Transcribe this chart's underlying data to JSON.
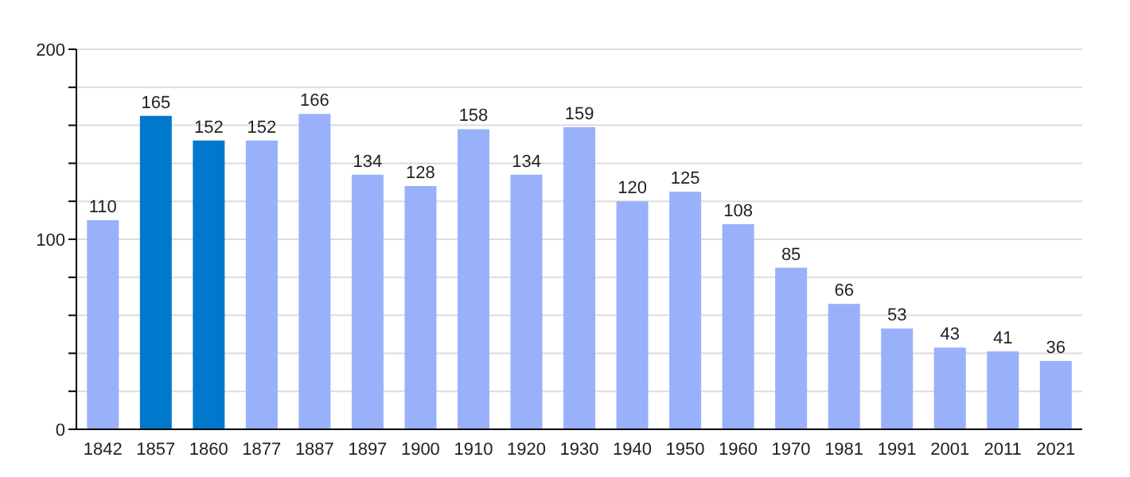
{
  "chart_data": {
    "type": "bar",
    "categories": [
      "1842",
      "1857",
      "1860",
      "1877",
      "1887",
      "1897",
      "1900",
      "1910",
      "1920",
      "1930",
      "1940",
      "1950",
      "1960",
      "1970",
      "1981",
      "1991",
      "2001",
      "2011",
      "2021"
    ],
    "values": [
      110,
      165,
      152,
      152,
      166,
      134,
      128,
      158,
      134,
      159,
      120,
      125,
      108,
      85,
      66,
      53,
      43,
      41,
      36
    ],
    "colors": [
      "#99b0fb",
      "#0078cc",
      "#0078cc",
      "#99b0fb",
      "#99b0fb",
      "#99b0fb",
      "#99b0fb",
      "#99b0fb",
      "#99b0fb",
      "#99b0fb",
      "#99b0fb",
      "#99b0fb",
      "#99b0fb",
      "#99b0fb",
      "#99b0fb",
      "#99b0fb",
      "#99b0fb",
      "#99b0fb",
      "#99b0fb"
    ],
    "ylim": [
      0,
      200
    ],
    "yticks": [
      0,
      {
        "value": 20,
        "label": null
      },
      {
        "value": 40,
        "label": null
      },
      {
        "value": 60,
        "label": null
      },
      {
        "value": 80,
        "label": null
      },
      100,
      {
        "value": 120,
        "label": null
      },
      {
        "value": 140,
        "label": null
      },
      {
        "value": 160,
        "label": null
      },
      {
        "value": 180,
        "label": null
      },
      200
    ],
    "grid": "y",
    "data_labels": true
  }
}
